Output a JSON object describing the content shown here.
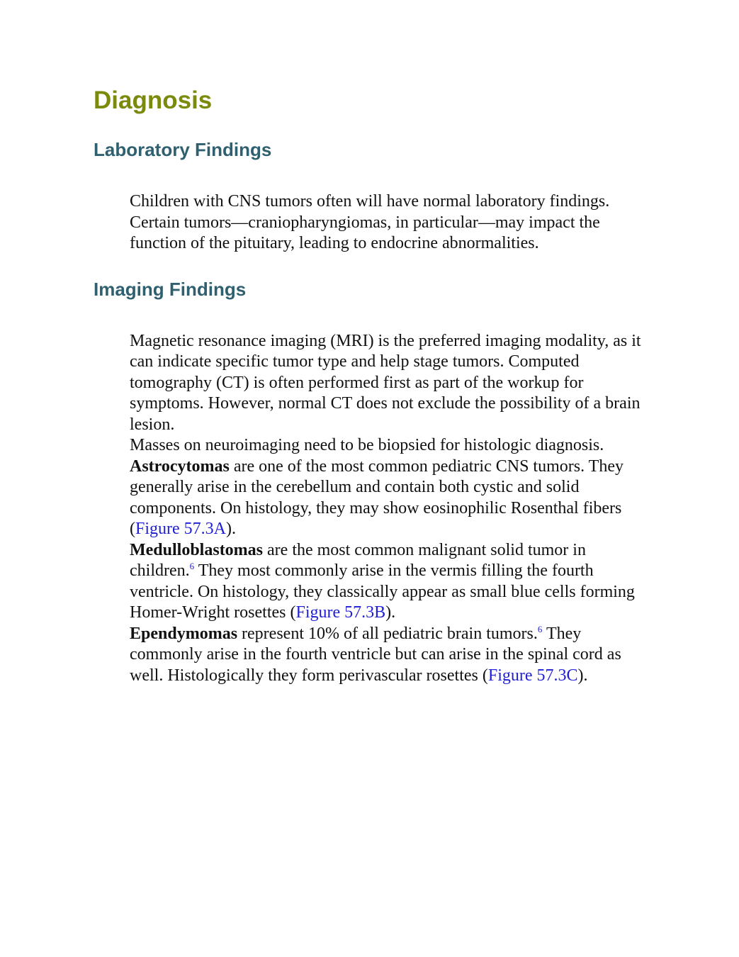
{
  "title": "Diagnosis",
  "sections": [
    {
      "heading": "Laboratory Findings",
      "paragraphs": [
        {
          "runs": [
            {
              "text": "Children with CNS tumors often will have normal laboratory findings. Certain tumors—craniopharyngiomas, in particular—may impact the function of the pituitary, leading to endocrine abnormalities."
            }
          ]
        }
      ]
    },
    {
      "heading": "Imaging Findings",
      "paragraphs": [
        {
          "runs": [
            {
              "text": "Magnetic resonance imaging (MRI) is the preferred imaging modality, as it can indicate specific tumor type and help stage tumors. Computed tomography (CT) is often performed first as part of the workup for symptoms. However, normal CT does not exclude the possibility of a brain lesion."
            }
          ]
        },
        {
          "runs": [
            {
              "text": "Masses on neuroimaging need to be biopsied for histologic diagnosis."
            }
          ]
        },
        {
          "runs": [
            {
              "bold": "Astrocytomas"
            },
            {
              "text": " are one of the most common pediatric CNS tumors. They generally arise in the cerebellum and contain both cystic and solid components. On histology, they may show eosinophilic Rosenthal fibers ("
            },
            {
              "link": "Figure 57.3A"
            },
            {
              "text": ")."
            }
          ]
        },
        {
          "runs": [
            {
              "bold": "Medulloblastomas"
            },
            {
              "text": " are the most common malignant solid tumor in children."
            },
            {
              "sup": "6"
            },
            {
              "text": " They most commonly arise in the vermis filling the fourth ventricle. On histology, they classically appear as small blue cells forming Homer-Wright rosettes ("
            },
            {
              "link": "Figure 57.3B"
            },
            {
              "text": ")."
            }
          ]
        },
        {
          "runs": [
            {
              "bold": "Ependymomas"
            },
            {
              "text": " represent 10% of all pediatric brain tumors."
            },
            {
              "sup": "6"
            },
            {
              "text": " They commonly arise in the fourth ventricle but can arise in the spinal cord as well. Histologically they form perivascular rosettes ("
            },
            {
              "link": "Figure 57.3C"
            },
            {
              "text": ")."
            }
          ]
        }
      ]
    }
  ]
}
